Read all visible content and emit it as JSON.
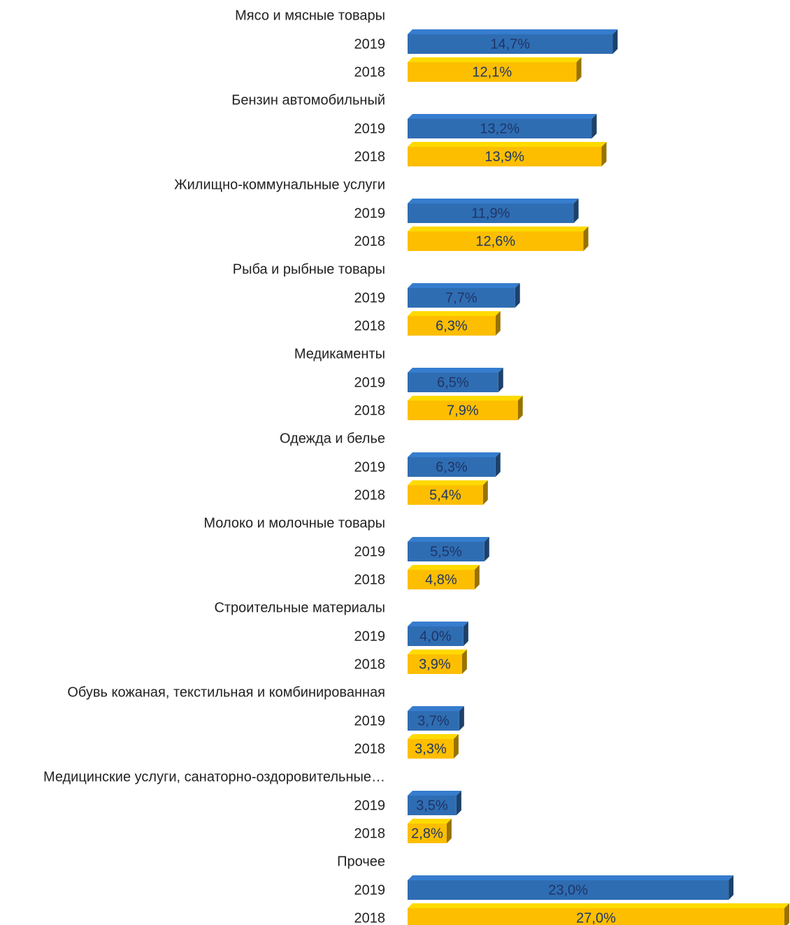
{
  "chart_data": {
    "type": "bar3d_horizontal_grouped",
    "categories": [
      "Мясо и мясные товары",
      "Бензин автомобильный",
      "Жилищно-коммунальные услуги",
      "Рыба и рыбные товары",
      "Медикаменты",
      "Одежда и белье",
      "Молоко и молочные товары",
      "Строительные материалы",
      "Обувь кожаная, текстильная и комбинированная",
      "Медицинские услуги, санаторно-оздоровительные…",
      "Прочее"
    ],
    "series": [
      {
        "name": "2019",
        "color": "#2f6db3",
        "values": [
          14.7,
          13.2,
          11.9,
          7.7,
          6.5,
          6.3,
          5.5,
          4.0,
          3.7,
          3.5,
          23.0
        ],
        "value_labels": [
          "14,7%",
          "13,2%",
          "11,9%",
          "7,7%",
          "6,5%",
          "6,3%",
          "5,5%",
          "4,0%",
          "3,7%",
          "3,5%",
          "23,0%"
        ]
      },
      {
        "name": "2018",
        "color": "#fdbe00",
        "values": [
          12.1,
          13.9,
          12.6,
          6.3,
          7.9,
          5.4,
          4.8,
          3.9,
          3.3,
          2.8,
          27.0
        ],
        "value_labels": [
          "12,1%",
          "13,9%",
          "12,6%",
          "6,3%",
          "7,9%",
          "5,4%",
          "4,8%",
          "3,9%",
          "3,3%",
          "2,8%",
          "27,0%"
        ]
      }
    ]
  }
}
